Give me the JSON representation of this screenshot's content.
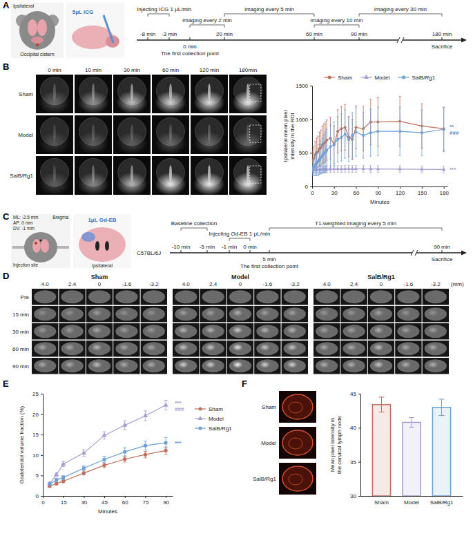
{
  "panel_letters": [
    "A",
    "B",
    "C",
    "D",
    "E",
    "F"
  ],
  "panel_a": {
    "schematic": {
      "side": "Ipsilateral",
      "site": "Occipital cistern",
      "injection": "5μL ICG"
    },
    "timeline": {
      "phases": [
        "Injecting ICG 1 μL/min",
        "imaging every 2 min",
        "imaging every 5 min",
        "imaging every 10 min",
        "imaging every 30 min"
      ],
      "marks_above": [
        "-8 min",
        "-3 min",
        "20 min",
        "60 min",
        "90 min",
        "180 min"
      ],
      "marks_below": [
        "0 min",
        "The first collection point",
        "Sacrifice"
      ]
    }
  },
  "panel_b_images": {
    "columns": [
      "0 min",
      "10 min",
      "30 min",
      "60 min",
      "120 min",
      "180min"
    ],
    "rows": [
      "Sham",
      "Model",
      "SalB/Rg1"
    ]
  },
  "panel_c": {
    "schematic": {
      "coords": [
        "ML: -2.5 mm",
        "AP: 0 mm",
        "DV: -1 mm"
      ],
      "bregma": "Bregma",
      "site": "Injection site",
      "injection": "1μL Gd-EB",
      "side": "Ipsilateral",
      "strain": "C57BL/6J"
    },
    "timeline": {
      "phases": [
        "Baseline collection",
        "Injecting Gd-EB 1 μL/min",
        "T1-weighted imaging every 5 min"
      ],
      "marks_above": [
        "-10 min",
        "-5 min",
        "-1 min",
        "0 min",
        "90 min"
      ],
      "marks_below": [
        "5 min",
        "The first collection point",
        "Sacrifice"
      ]
    }
  },
  "panel_d": {
    "groups": [
      "Sham",
      "Model",
      "SalB/Rg1"
    ],
    "columns": [
      "4.0",
      "2.4",
      "0",
      "-1.6",
      "-3.2"
    ],
    "unit": "(mm)",
    "rows": [
      "Pre",
      "15 min",
      "30 min",
      "60 min",
      "90 min"
    ]
  },
  "panel_f_images": {
    "rows": [
      "Sham",
      "Model",
      "SalB/Rg1"
    ]
  },
  "chart_data": [
    {
      "type": "line",
      "x_label": "Minutes",
      "y_label": "Ipsilateral mean pixel intensity in the ROI",
      "x": [
        0,
        2,
        4,
        6,
        8,
        10,
        12,
        14,
        16,
        18,
        20,
        25,
        30,
        35,
        40,
        45,
        50,
        55,
        60,
        70,
        80,
        90,
        120,
        150,
        180
      ],
      "xlim": [
        0,
        185
      ],
      "xticks": [
        0,
        30,
        60,
        90,
        120,
        150,
        180
      ],
      "ylim": [
        0,
        1500
      ],
      "yticks": [
        0,
        500,
        1000,
        1500
      ],
      "legend": "top",
      "series": [
        {
          "name": "Sham",
          "color": "#c0705a",
          "marker": "circle",
          "values": [
            380,
            420,
            470,
            500,
            520,
            560,
            580,
            620,
            640,
            660,
            690,
            720,
            620,
            820,
            860,
            880,
            740,
            700,
            880,
            860,
            960,
            960,
            970,
            900,
            860
          ],
          "errors": [
            150,
            180,
            200,
            220,
            230,
            250,
            260,
            280,
            290,
            300,
            300,
            310,
            280,
            320,
            330,
            340,
            300,
            300,
            320,
            330,
            340,
            360,
            370,
            330,
            320
          ]
        },
        {
          "name": "Model",
          "color": "#a99bd1",
          "marker": "triangle",
          "values": [
            240,
            245,
            245,
            250,
            250,
            250,
            255,
            255,
            255,
            255,
            258,
            258,
            260,
            260,
            260,
            262,
            262,
            262,
            262,
            262,
            260,
            260,
            258,
            255,
            252
          ],
          "errors": [
            40,
            40,
            45,
            45,
            45,
            50,
            50,
            50,
            50,
            50,
            50,
            50,
            50,
            50,
            50,
            50,
            50,
            50,
            50,
            50,
            50,
            50,
            50,
            50,
            50
          ]
        },
        {
          "name": "SalB/Rg1",
          "color": "#6b9fd6",
          "marker": "square",
          "values": [
            260,
            290,
            320,
            340,
            370,
            400,
            430,
            460,
            490,
            510,
            540,
            590,
            630,
            700,
            730,
            780,
            700,
            760,
            810,
            760,
            800,
            820,
            820,
            800,
            850
          ],
          "errors": [
            100,
            130,
            160,
            180,
            200,
            220,
            240,
            260,
            280,
            300,
            310,
            320,
            330,
            340,
            350,
            360,
            330,
            340,
            360,
            340,
            350,
            360,
            360,
            340,
            330
          ]
        }
      ],
      "annotations": [
        {
          "text": "**",
          "color": "#4f86c6"
        },
        {
          "text": "###",
          "color": "#4f86c6"
        },
        {
          "text": "***",
          "color": "#9c92c4"
        }
      ]
    },
    {
      "type": "line",
      "x_label": "Minutes",
      "y_label": "Gadoteridol volume fraction (%)",
      "x": [
        5,
        10,
        15,
        30,
        45,
        60,
        75,
        90
      ],
      "xlim": [
        0,
        95
      ],
      "xticks": [
        0,
        15,
        30,
        45,
        60,
        75,
        90
      ],
      "ylim": [
        0,
        25
      ],
      "yticks": [
        0,
        5,
        10,
        15,
        20,
        25
      ],
      "legend": "right",
      "series": [
        {
          "name": "Sham",
          "color": "#c0705a",
          "marker": "circle",
          "values": [
            2.4,
            3.0,
            3.6,
            5.6,
            7.5,
            9.0,
            10.1,
            11.1
          ],
          "errors": [
            0.3,
            0.3,
            0.4,
            0.5,
            0.6,
            0.7,
            0.8,
            0.9
          ]
        },
        {
          "name": "Model",
          "color": "#a99bd1",
          "marker": "triangle",
          "values": [
            3.0,
            5.2,
            7.8,
            10.5,
            14.8,
            17.3,
            19.6,
            22.2
          ],
          "errors": [
            0.4,
            0.5,
            0.6,
            0.8,
            0.9,
            1.1,
            1.2,
            1.2
          ]
        },
        {
          "name": "SalB/Rg1",
          "color": "#6b9fd6",
          "marker": "square",
          "values": [
            2.9,
            3.9,
            4.5,
            6.8,
            8.9,
            10.8,
            12.3,
            13.0
          ],
          "errors": [
            0.3,
            0.4,
            0.5,
            0.6,
            0.8,
            1.0,
            1.1,
            1.3
          ]
        }
      ],
      "annotations": [
        {
          "text": "***",
          "color": "#9c8fc9"
        },
        {
          "text": "###",
          "color": "#9c8fc9"
        },
        {
          "text": "***",
          "color": "#4f86c6"
        }
      ]
    },
    {
      "type": "bar",
      "y_label": "Mean pixel intensity in the cervical lymph node",
      "categories": [
        "Sham",
        "Model",
        "SalB/Rg1"
      ],
      "values": [
        43.4,
        40.8,
        43.0
      ],
      "errors": [
        1.1,
        0.7,
        1.2
      ],
      "colors": [
        "#c0705a",
        "#a99bd1",
        "#6b9fd6"
      ],
      "ylim": [
        30,
        45
      ],
      "yticks": [
        30,
        35,
        40,
        45
      ]
    }
  ]
}
